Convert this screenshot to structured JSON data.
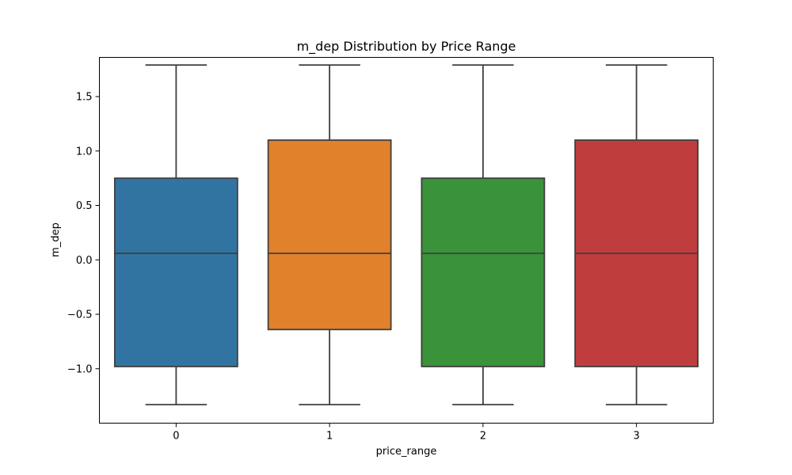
{
  "chart_data": {
    "type": "box",
    "title": "m_dep Distribution by Price Range",
    "xlabel": "price_range",
    "ylabel": "m_dep",
    "categories": [
      "0",
      "1",
      "2",
      "3"
    ],
    "ylim": [
      -1.5,
      1.86
    ],
    "yticks": [
      -1.0,
      -0.5,
      0.0,
      0.5,
      1.0,
      1.5
    ],
    "ytick_labels": [
      "−1.0",
      "−0.5",
      "0.0",
      "0.5",
      "1.0",
      "1.5"
    ],
    "boxes": [
      {
        "category": "0",
        "min": -1.33,
        "q1": -0.98,
        "median": 0.06,
        "q3": 0.75,
        "max": 1.79,
        "color": "#3274a1"
      },
      {
        "category": "1",
        "min": -1.33,
        "q1": -0.64,
        "median": 0.06,
        "q3": 1.1,
        "max": 1.79,
        "color": "#e1812c"
      },
      {
        "category": "2",
        "min": -1.33,
        "q1": -0.98,
        "median": 0.06,
        "q3": 0.75,
        "max": 1.79,
        "color": "#3a923a"
      },
      {
        "category": "3",
        "min": -1.33,
        "q1": -0.98,
        "median": 0.06,
        "q3": 1.1,
        "max": 1.79,
        "color": "#c03d3e"
      }
    ],
    "line_color": "#3f3f3f",
    "grid": false
  }
}
